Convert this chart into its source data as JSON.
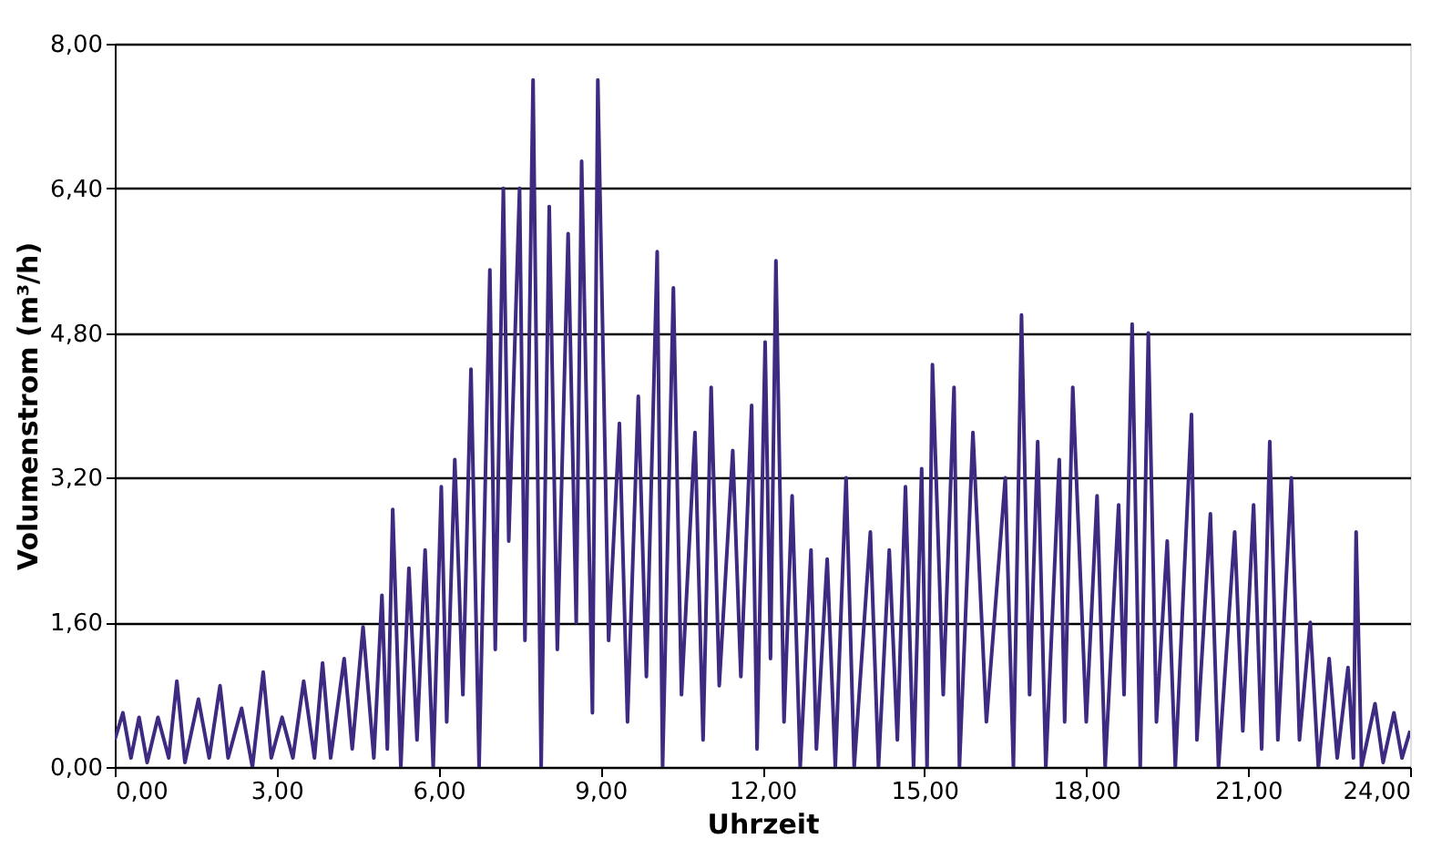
{
  "chart_data": {
    "type": "line",
    "xlabel": "Uhrzeit",
    "ylabel": "Volumenstrom (m³/h)",
    "grid": "y",
    "line_style": "solid",
    "xlim": [
      0,
      24
    ],
    "ylim": [
      0,
      8
    ],
    "xticks": [
      {
        "value": 0,
        "label": "0,00"
      },
      {
        "value": 3,
        "label": "3,00"
      },
      {
        "value": 6,
        "label": "6,00"
      },
      {
        "value": 9,
        "label": "9,00"
      },
      {
        "value": 12,
        "label": "12,00"
      },
      {
        "value": 15,
        "label": "15,00"
      },
      {
        "value": 18,
        "label": "18,00"
      },
      {
        "value": 21,
        "label": "21,00"
      },
      {
        "value": 24,
        "label": "24,00"
      }
    ],
    "yticks": [
      {
        "value": 0,
        "label": "0,00"
      },
      {
        "value": 1.6,
        "label": "1,60"
      },
      {
        "value": 3.2,
        "label": "3,20"
      },
      {
        "value": 4.8,
        "label": "4,80"
      },
      {
        "value": 6.4,
        "label": "6,40"
      },
      {
        "value": 8,
        "label": "8,00"
      }
    ],
    "series": [
      {
        "color": "#3f2a82",
        "x": [
          0.0,
          0.15,
          0.3,
          0.45,
          0.6,
          0.8,
          1.0,
          1.15,
          1.3,
          1.55,
          1.75,
          1.95,
          2.1,
          2.35,
          2.55,
          2.75,
          2.9,
          3.1,
          3.3,
          3.5,
          3.7,
          3.85,
          4.0,
          4.25,
          4.4,
          4.6,
          4.8,
          4.95,
          5.05,
          5.15,
          5.3,
          5.45,
          5.6,
          5.75,
          5.9,
          6.05,
          6.15,
          6.3,
          6.45,
          6.6,
          6.75,
          6.95,
          7.05,
          7.2,
          7.3,
          7.5,
          7.6,
          7.75,
          7.9,
          8.05,
          8.2,
          8.4,
          8.55,
          8.65,
          8.85,
          8.95,
          9.15,
          9.35,
          9.5,
          9.7,
          9.85,
          10.05,
          10.15,
          10.35,
          10.5,
          10.75,
          10.9,
          11.05,
          11.2,
          11.45,
          11.6,
          11.8,
          11.9,
          12.05,
          12.15,
          12.25,
          12.4,
          12.55,
          12.7,
          12.9,
          13.0,
          13.2,
          13.35,
          13.55,
          13.7,
          14.0,
          14.15,
          14.35,
          14.5,
          14.65,
          14.8,
          14.95,
          15.05,
          15.15,
          15.35,
          15.55,
          15.65,
          15.9,
          16.15,
          16.5,
          16.65,
          16.8,
          16.95,
          17.1,
          17.25,
          17.5,
          17.6,
          17.75,
          18.0,
          18.2,
          18.35,
          18.6,
          18.7,
          18.85,
          19.0,
          19.15,
          19.3,
          19.5,
          19.65,
          19.95,
          20.05,
          20.3,
          20.45,
          20.75,
          20.9,
          21.1,
          21.25,
          21.4,
          21.55,
          21.8,
          21.95,
          22.15,
          22.3,
          22.5,
          22.65,
          22.85,
          22.95,
          23.0,
          23.1,
          23.35,
          23.5,
          23.7,
          23.85,
          24.0
        ],
        "values": [
          0.3,
          0.6,
          0.1,
          0.55,
          0.05,
          0.55,
          0.1,
          0.95,
          0.05,
          0.75,
          0.1,
          0.9,
          0.1,
          0.65,
          0.0,
          1.05,
          0.1,
          0.55,
          0.1,
          0.95,
          0.1,
          1.15,
          0.1,
          1.2,
          0.2,
          1.55,
          0.1,
          1.9,
          0.2,
          2.85,
          0.0,
          2.2,
          0.3,
          2.4,
          0.0,
          3.1,
          0.5,
          3.4,
          0.8,
          4.4,
          0.0,
          5.5,
          1.3,
          6.4,
          2.5,
          6.4,
          1.4,
          7.6,
          0.0,
          6.2,
          1.3,
          5.9,
          1.6,
          6.7,
          0.6,
          7.6,
          1.4,
          3.8,
          0.5,
          4.1,
          1.0,
          5.7,
          0.0,
          5.3,
          0.8,
          3.7,
          0.3,
          4.2,
          0.9,
          3.5,
          1.0,
          4.0,
          0.2,
          4.7,
          1.2,
          5.6,
          0.5,
          3.0,
          0.0,
          2.4,
          0.2,
          2.3,
          0.0,
          3.2,
          0.0,
          2.6,
          0.0,
          2.4,
          0.3,
          3.1,
          0.0,
          3.3,
          0.0,
          4.45,
          0.8,
          4.2,
          0.0,
          3.7,
          0.5,
          3.2,
          0.0,
          5.0,
          0.8,
          3.6,
          0.0,
          3.4,
          0.5,
          4.2,
          0.5,
          3.0,
          0.0,
          2.9,
          0.8,
          4.9,
          0.0,
          4.8,
          0.5,
          2.5,
          0.0,
          3.9,
          0.3,
          2.8,
          0.0,
          2.6,
          0.4,
          2.9,
          0.2,
          3.6,
          0.3,
          3.2,
          0.3,
          1.6,
          0.0,
          1.2,
          0.1,
          1.1,
          0.1,
          2.6,
          0.0,
          0.7,
          0.05,
          0.6,
          0.1,
          0.4
        ]
      }
    ]
  }
}
